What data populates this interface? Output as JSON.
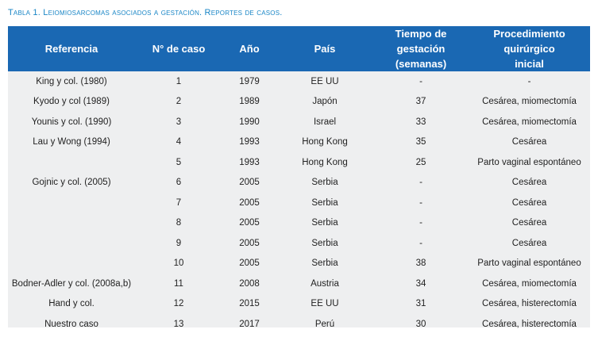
{
  "caption": "Tabla 1. Leiomiosarcomas asociados a gestación. Reportes de casos.",
  "table": {
    "headers": {
      "referencia": "Referencia",
      "caso": "N° de caso",
      "anio": "Año",
      "pais": "País",
      "tiempo_line1": "Tiempo de gestación",
      "tiempo_line2": "(semanas)",
      "proc_line1": "Procedimiento quirúrgico",
      "proc_line2": "inicial"
    },
    "rows": [
      {
        "ref": "King y col. (1980)",
        "caso": "1",
        "anio": "1979",
        "pais": "EE UU",
        "tiempo": "-",
        "proc": "-"
      },
      {
        "ref": "Kyodo y col (1989)",
        "caso": "2",
        "anio": "1989",
        "pais": "Japón",
        "tiempo": "37",
        "proc": "Cesárea, miomectomía"
      },
      {
        "ref": "Younis y col. (1990)",
        "caso": "3",
        "anio": "1990",
        "pais": "Israel",
        "tiempo": "33",
        "proc": "Cesárea, miomectomía"
      },
      {
        "ref": "Lau y Wong (1994)",
        "caso": "4",
        "anio": "1993",
        "pais": "Hong Kong",
        "tiempo": "35",
        "proc": "Cesárea"
      },
      {
        "ref": "",
        "caso": "5",
        "anio": "1993",
        "pais": "Hong Kong",
        "tiempo": "25",
        "proc": "Parto vaginal espontáneo"
      },
      {
        "ref": "Gojnic y col. (2005)",
        "caso": "6",
        "anio": "2005",
        "pais": "Serbia",
        "tiempo": "-",
        "proc": "Cesárea"
      },
      {
        "ref": "",
        "caso": "7",
        "anio": "2005",
        "pais": "Serbia",
        "tiempo": "-",
        "proc": "Cesárea"
      },
      {
        "ref": "",
        "caso": "8",
        "anio": "2005",
        "pais": "Serbia",
        "tiempo": "-",
        "proc": "Cesárea"
      },
      {
        "ref": "",
        "caso": "9",
        "anio": "2005",
        "pais": "Serbia",
        "tiempo": "-",
        "proc": "Cesárea"
      },
      {
        "ref": "",
        "caso": "10",
        "anio": "2005",
        "pais": "Serbia",
        "tiempo": "38",
        "proc": "Parto vaginal espontáneo"
      },
      {
        "ref": "Bodner-Adler y col. (2008a,b)",
        "caso": "11",
        "anio": "2008",
        "pais": "Austria",
        "tiempo": "34",
        "proc": "Cesárea, miomectomía"
      },
      {
        "ref": "Hand y col.",
        "caso": "12",
        "anio": "2015",
        "pais": "EE UU",
        "tiempo": "31",
        "proc": "Cesárea, histerectomía"
      },
      {
        "ref": "Nuestro caso",
        "caso": "13",
        "anio": "2017",
        "pais": "Perú",
        "tiempo": "30",
        "proc": "Cesárea, histerectomía"
      }
    ]
  }
}
